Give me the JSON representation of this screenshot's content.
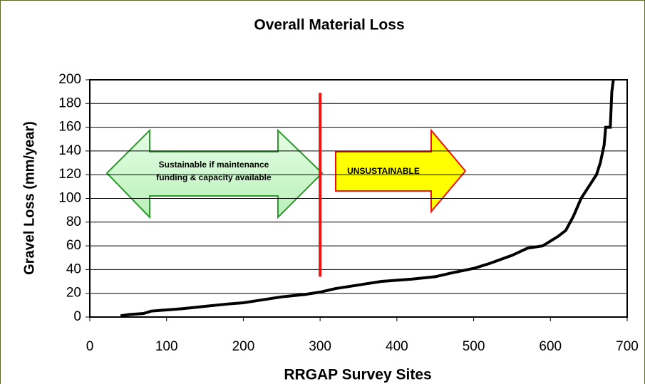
{
  "chart_data": {
    "type": "line",
    "title": "Overall Material Loss",
    "xlabel": "RRGAP Survey Sites",
    "ylabel": "Gravel Loss (mm/year)",
    "series": [
      {
        "name": "Gravel loss",
        "color": "#000000",
        "x": [
          40,
          50,
          70,
          80,
          100,
          120,
          150,
          180,
          200,
          220,
          250,
          280,
          300,
          320,
          350,
          380,
          400,
          420,
          450,
          470,
          500,
          520,
          550,
          570,
          590,
          600,
          610,
          620,
          630,
          640,
          650,
          660,
          665,
          670,
          672,
          678,
          680,
          682
        ],
        "values": [
          1,
          2,
          3,
          5,
          6,
          7,
          9,
          11,
          12,
          14,
          17,
          19,
          21,
          24,
          27,
          30,
          31,
          32,
          34,
          37,
          41,
          45,
          52,
          58,
          60,
          64,
          68,
          73,
          85,
          100,
          110,
          120,
          130,
          145,
          160,
          160,
          190,
          200
        ]
      }
    ],
    "xlim": [
      0,
      700
    ],
    "xticks": [
      0,
      100,
      200,
      300,
      400,
      500,
      600,
      700
    ],
    "ylim": [
      0,
      200
    ],
    "yticks": [
      0,
      20,
      40,
      60,
      80,
      100,
      120,
      140,
      160,
      180,
      200
    ],
    "grid": true,
    "vline": {
      "x": 300,
      "y": [
        34,
        189
      ],
      "color": "#ee1111"
    },
    "annotations": [
      {
        "lines": [
          "Sustainable if maintenance",
          "funding & capacity available"
        ]
      },
      {
        "lines": [
          "UNSUSTAINABLE"
        ]
      }
    ]
  }
}
